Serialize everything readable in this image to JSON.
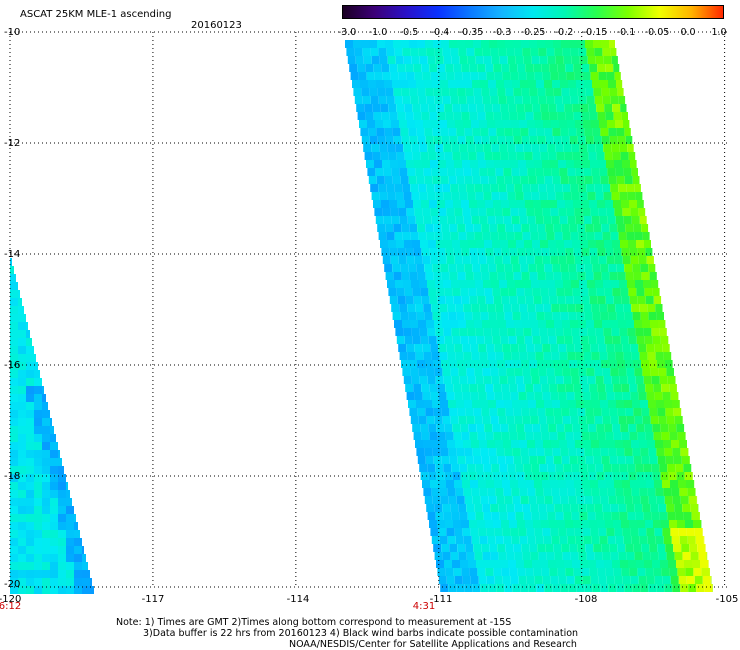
{
  "header": {
    "title": "ASCAT 25KM MLE-1 ascending",
    "date": "20160123"
  },
  "colorbar": {
    "labels": [
      "-3.0",
      "-1.0",
      "-0.5",
      "-0.4",
      "-0.35",
      "-0.3",
      "-0.25",
      "-0.2",
      "-0.15",
      "-0.1",
      "-0.05",
      "0.0",
      "1.0"
    ],
    "colors": [
      "#1b0023",
      "#3c0078",
      "#2a12c8",
      "#0a32ff",
      "#0a78ff",
      "#14b4ff",
      "#00e8f0",
      "#00f8b4",
      "#28ff50",
      "#7cff00",
      "#f0ff00",
      "#ffb400",
      "#ff2800"
    ]
  },
  "map": {
    "y_axis": {
      "labels": [
        "-10",
        "-12",
        "-14",
        "-16",
        "-18",
        "-20"
      ],
      "values": [
        -10,
        -12,
        -14,
        -16,
        -18,
        -20
      ]
    },
    "x_axis": {
      "labels": [
        "-120",
        "-117",
        "-114",
        "-111",
        "-108",
        "-105"
      ],
      "values": [
        -120,
        -117,
        -114,
        -111,
        -108,
        -105
      ]
    },
    "time_labels": [
      {
        "text": "6:12",
        "lon": -120
      },
      {
        "text": "4:31",
        "lon": -111
      }
    ],
    "lat_range": [
      -20,
      -10
    ],
    "lon_range": [
      -120,
      -104
    ],
    "grid": true
  },
  "notes": {
    "line1": "Note: 1) Times are GMT 2)Times along bottom correspond to measurement at -15S",
    "line2": "3)Data buffer is 22 hrs from 20160123 4) Black wind barbs indicate possible contamination",
    "line3": "NOAA/NESDIS/Center for Satellite Applications and Research"
  }
}
